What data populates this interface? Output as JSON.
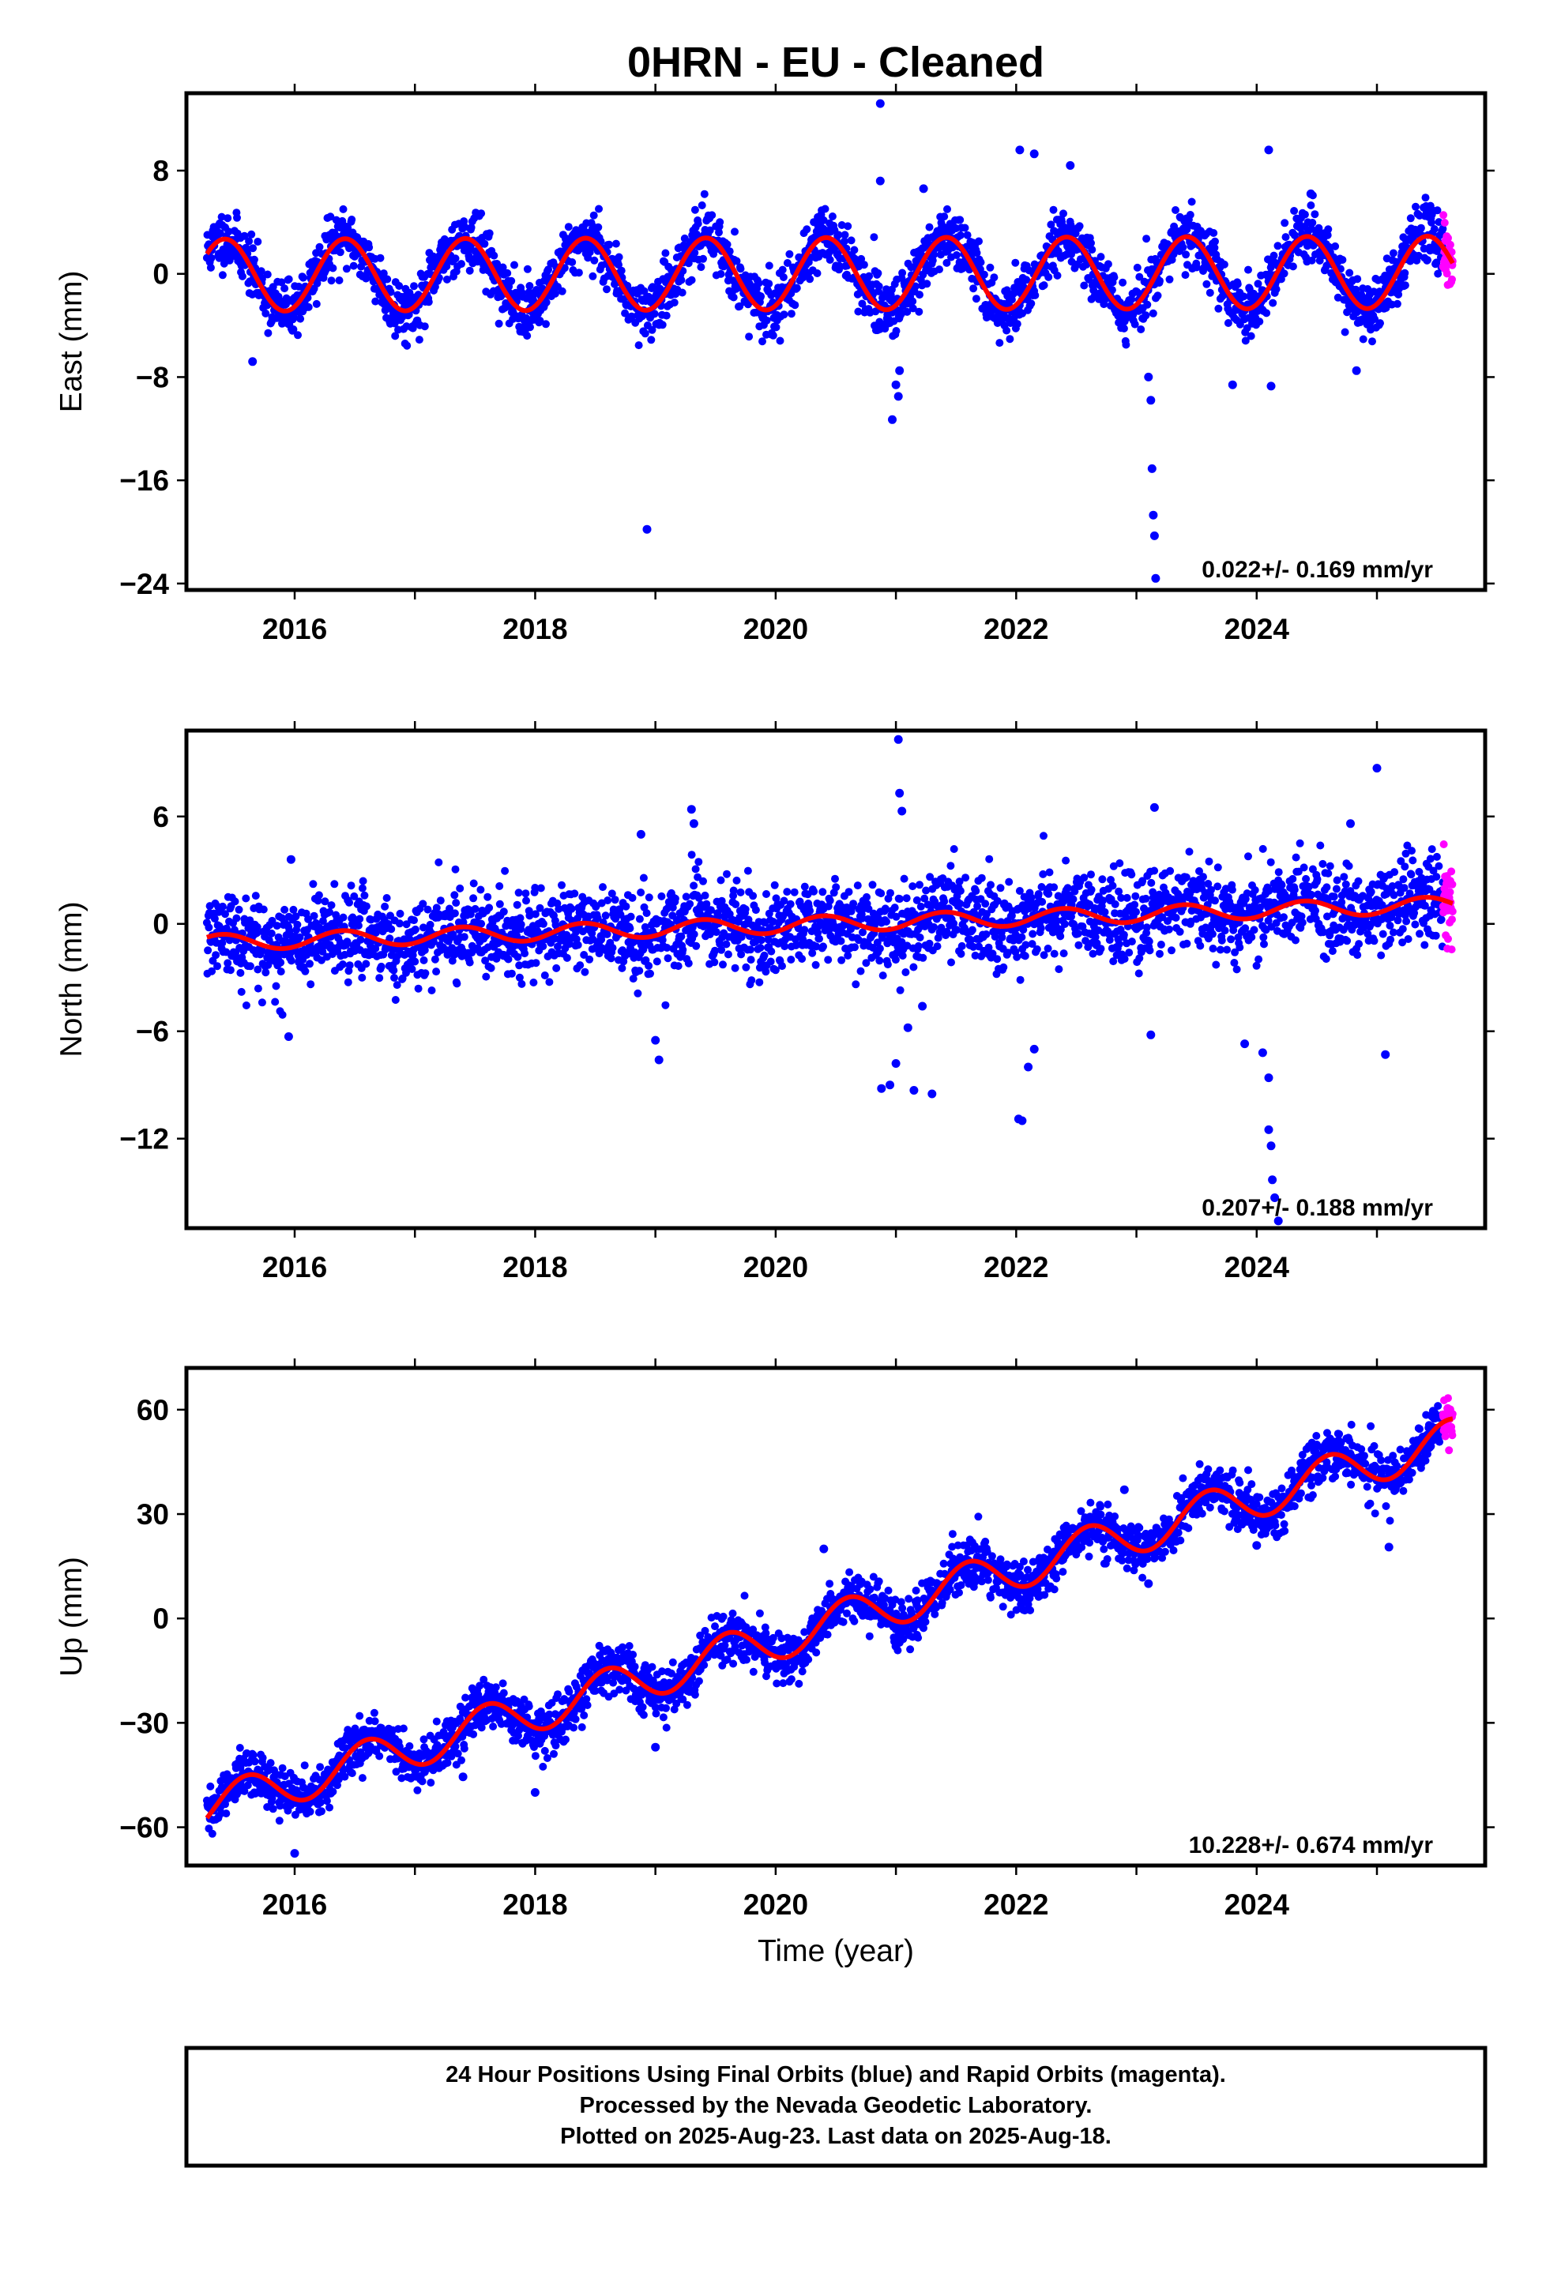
{
  "title": "0HRN  - EU - Cleaned",
  "xlabel": "Time (year)",
  "footer": {
    "line1": "24 Hour Positions Using Final Orbits (blue) and Rapid Orbits (magenta).",
    "line2": "Processed by the Nevada Geodetic Laboratory.",
    "line3": "Plotted on 2025-Aug-23. Last data on 2025-Aug-18."
  },
  "colors": {
    "final_orbits": "#0000ff",
    "rapid_orbits": "#ff00ff",
    "model_fit": "#ff0000",
    "frame": "#000000"
  },
  "chart_data": [
    {
      "type": "scatter",
      "ylabel": "East (mm)",
      "rate_text": "0.022+/- 0.169 mm/yr",
      "xlim": [
        2015.1,
        2025.9
      ],
      "ylim": [
        -24.5,
        14
      ],
      "xticks": [
        2016,
        2018,
        2020,
        2022,
        2024
      ],
      "yticks": [
        8,
        0,
        -8,
        -16,
        -24
      ],
      "grid": false,
      "model": {
        "rate_mm_per_yr": 0.022,
        "annual_amp": 2.8,
        "annual_peak": 0.42,
        "semiannual_amp": 0.0,
        "semiannual_peak": 0.0,
        "ref_year": 2020.0,
        "offset": 0.0
      },
      "series": [
        {
          "name": "Final Orbits",
          "x_range": [
            2015.27,
            2025.55
          ],
          "scatter_sd": 1.1,
          "seed": 11
        },
        {
          "name": "Rapid Orbits",
          "x_range": [
            2025.55,
            2025.63
          ],
          "scatter_sd": 1.3,
          "seed": 12
        }
      ],
      "outliers": [
        [
          2015.65,
          -6.8
        ],
        [
          2018.93,
          -19.8
        ],
        [
          2020.87,
          13.2
        ],
        [
          2020.87,
          7.2
        ],
        [
          2020.97,
          -11.3
        ],
        [
          2021.0,
          -8.6
        ],
        [
          2021.02,
          -9.5
        ],
        [
          2021.03,
          -7.5
        ],
        [
          2021.23,
          6.6
        ],
        [
          2022.03,
          9.6
        ],
        [
          2022.15,
          9.3
        ],
        [
          2022.45,
          8.4
        ],
        [
          2023.1,
          -8.0
        ],
        [
          2023.12,
          -9.8
        ],
        [
          2023.13,
          -15.1
        ],
        [
          2023.14,
          -18.7
        ],
        [
          2023.15,
          -20.3
        ],
        [
          2023.16,
          -23.6
        ],
        [
          2024.1,
          9.6
        ],
        [
          2024.12,
          -8.7
        ],
        [
          2023.8,
          -8.6
        ],
        [
          2024.45,
          6.2
        ],
        [
          2024.83,
          -7.5
        ]
      ]
    },
    {
      "type": "scatter",
      "ylabel": "North (mm)",
      "rate_text": "0.207+/- 0.188 mm/yr",
      "xlim": [
        2015.1,
        2025.9
      ],
      "ylim": [
        -17,
        10.8
      ],
      "xticks": [
        2016,
        2018,
        2020,
        2022,
        2024
      ],
      "yticks": [
        6,
        0,
        -6,
        -12
      ],
      "grid": false,
      "model": {
        "rate_mm_per_yr": 0.207,
        "annual_amp": 0.45,
        "annual_peak": 0.4,
        "semiannual_amp": 0.0,
        "semiannual_peak": 0.0,
        "ref_year": 2020.4,
        "offset": 0.0
      },
      "series": [
        {
          "name": "Final Orbits",
          "x_range": [
            2015.27,
            2025.55
          ],
          "scatter_sd": 1.2,
          "seed": 21
        },
        {
          "name": "Rapid Orbits",
          "x_range": [
            2025.55,
            2025.63
          ],
          "scatter_sd": 1.4,
          "seed": 22
        }
      ],
      "outliers": [
        [
          2015.95,
          -6.3
        ],
        [
          2015.97,
          3.6
        ],
        [
          2018.88,
          5.0
        ],
        [
          2019.0,
          -6.5
        ],
        [
          2019.03,
          -7.6
        ],
        [
          2019.3,
          6.4
        ],
        [
          2019.32,
          5.6
        ],
        [
          2020.88,
          -9.2
        ],
        [
          2020.95,
          -9.0
        ],
        [
          2021.0,
          -7.8
        ],
        [
          2021.02,
          10.3
        ],
        [
          2021.03,
          7.3
        ],
        [
          2021.05,
          6.3
        ],
        [
          2021.1,
          -5.8
        ],
        [
          2021.15,
          -9.3
        ],
        [
          2021.3,
          -9.5
        ],
        [
          2021.22,
          -4.6
        ],
        [
          2022.02,
          -10.9
        ],
        [
          2022.05,
          -11.0
        ],
        [
          2022.1,
          -8.0
        ],
        [
          2022.15,
          -7.0
        ],
        [
          2023.15,
          6.5
        ],
        [
          2023.12,
          -6.2
        ],
        [
          2023.9,
          -6.7
        ],
        [
          2024.05,
          -7.2
        ],
        [
          2024.1,
          -8.6
        ],
        [
          2024.1,
          -11.5
        ],
        [
          2024.12,
          -12.4
        ],
        [
          2024.13,
          -14.3
        ],
        [
          2024.15,
          -15.3
        ],
        [
          2024.18,
          -16.6
        ],
        [
          2025.0,
          8.7
        ],
        [
          2025.07,
          -7.3
        ],
        [
          2024.78,
          5.6
        ]
      ]
    },
    {
      "type": "scatter",
      "ylabel": "Up (mm)",
      "rate_text": "10.228+/- 0.674 mm/yr",
      "xlim": [
        2015.1,
        2025.9
      ],
      "ylim": [
        -71,
        72
      ],
      "xticks": [
        2016,
        2018,
        2020,
        2022,
        2024
      ],
      "yticks": [
        60,
        30,
        0,
        -30,
        -60
      ],
      "grid": false,
      "model": {
        "rate_mm_per_yr": 10.228,
        "annual_amp": 6.0,
        "annual_peak": 0.6,
        "semiannual_amp": 0.0,
        "semiannual_peak": 0.0,
        "ref_year": 2020.4,
        "offset": -2.0
      },
      "series": [
        {
          "name": "Final Orbits",
          "x_range": [
            2015.27,
            2025.55
          ],
          "scatter_sd": 3.6,
          "seed": 31
        },
        {
          "name": "Rapid Orbits",
          "x_range": [
            2025.55,
            2025.63
          ],
          "scatter_sd": 3.2,
          "seed": 32
        }
      ],
      "outliers": [
        [
          2016.0,
          -67.5
        ],
        [
          2017.4,
          -45.5
        ],
        [
          2018.0,
          -50.0
        ],
        [
          2019.0,
          -37.0
        ],
        [
          2021.0,
          -8.0
        ],
        [
          2023.1,
          10.0
        ],
        [
          2024.0,
          21.0
        ],
        [
          2025.1,
          20.5
        ],
        [
          2020.4,
          20.0
        ],
        [
          2022.9,
          37.0
        ]
      ]
    }
  ]
}
